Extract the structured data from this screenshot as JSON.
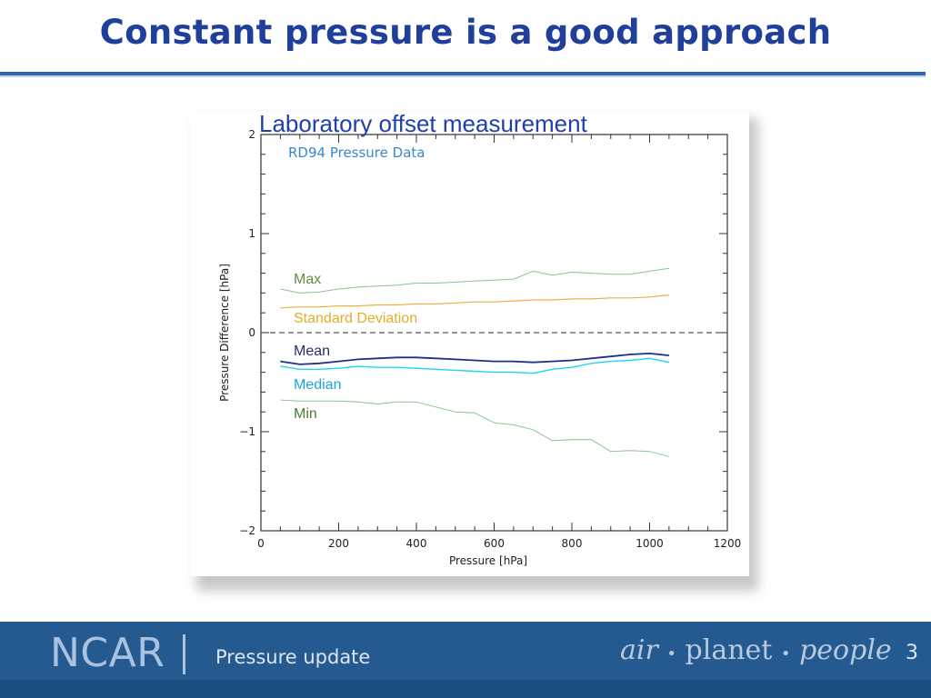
{
  "slide": {
    "title": "Constant pressure is a good approach",
    "footer": {
      "brand": "NCAR",
      "separator": "|",
      "subtitle": "Pressure update",
      "tagline_part1": "air",
      "tagline_dot": "•",
      "tagline_part2": "planet",
      "tagline_part3": "people",
      "page_number": "3"
    }
  },
  "colors": {
    "title": "#1f3f9a",
    "accent_rule": "#2a66b3",
    "footer_bg": "#245a90",
    "chart_title": "#1f3fae",
    "plot_label": "#3a86d0",
    "max": "#7aa76a",
    "min": "#7aa76a",
    "std": "#e0a93a",
    "mean": "#1f2f8a",
    "median": "#1ec8e8",
    "zero_line": "#555555"
  },
  "chart_data": {
    "type": "line",
    "title": "Laboratory offset measurement",
    "inner_label": "RD94 Pressure Data",
    "xlabel": "Pressure [hPa]",
    "ylabel": "Pressure Difference [hPa]",
    "xlim": [
      0,
      1200
    ],
    "ylim": [
      -2,
      2
    ],
    "xticks": [
      0,
      200,
      400,
      600,
      800,
      1000,
      1200
    ],
    "yticks": [
      -2,
      -1,
      0,
      1,
      2
    ],
    "ytick_labels": [
      "−2",
      "−1",
      "0",
      "1",
      "2"
    ],
    "zero_line": "dashed",
    "series": [
      {
        "name": "Max",
        "label_color": "#5f8f3f",
        "x": [
          50,
          100,
          150,
          200,
          250,
          300,
          350,
          400,
          450,
          500,
          550,
          600,
          650,
          700,
          750,
          800,
          850,
          900,
          950,
          1000,
          1050
        ],
        "y": [
          0.44,
          0.4,
          0.41,
          0.44,
          0.46,
          0.47,
          0.48,
          0.5,
          0.5,
          0.51,
          0.52,
          0.53,
          0.54,
          0.62,
          0.58,
          0.61,
          0.6,
          0.59,
          0.59,
          0.62,
          0.65
        ]
      },
      {
        "name": "Standard Deviation",
        "label_color": "#e4ad2a",
        "x": [
          50,
          100,
          150,
          200,
          250,
          300,
          350,
          400,
          450,
          500,
          550,
          600,
          650,
          700,
          750,
          800,
          850,
          900,
          950,
          1000,
          1050
        ],
        "y": [
          0.25,
          0.26,
          0.26,
          0.27,
          0.27,
          0.28,
          0.28,
          0.29,
          0.29,
          0.3,
          0.31,
          0.31,
          0.32,
          0.33,
          0.33,
          0.34,
          0.34,
          0.35,
          0.35,
          0.36,
          0.38
        ]
      },
      {
        "name": "Mean",
        "label_color": "#1f2f6a",
        "x": [
          50,
          100,
          150,
          200,
          250,
          300,
          350,
          400,
          450,
          500,
          550,
          600,
          650,
          700,
          750,
          800,
          850,
          900,
          950,
          1000,
          1050
        ],
        "y": [
          -0.29,
          -0.32,
          -0.31,
          -0.29,
          -0.27,
          -0.26,
          -0.25,
          -0.25,
          -0.26,
          -0.27,
          -0.28,
          -0.29,
          -0.29,
          -0.3,
          -0.29,
          -0.28,
          -0.26,
          -0.24,
          -0.22,
          -0.21,
          -0.23
        ]
      },
      {
        "name": "Median",
        "label_color": "#1aa8dc",
        "x": [
          50,
          100,
          150,
          200,
          250,
          300,
          350,
          400,
          450,
          500,
          550,
          600,
          650,
          700,
          750,
          800,
          850,
          900,
          950,
          1000,
          1050
        ],
        "y": [
          -0.34,
          -0.37,
          -0.37,
          -0.36,
          -0.34,
          -0.35,
          -0.35,
          -0.36,
          -0.37,
          -0.38,
          -0.39,
          -0.4,
          -0.4,
          -0.41,
          -0.37,
          -0.35,
          -0.31,
          -0.29,
          -0.28,
          -0.26,
          -0.3
        ]
      },
      {
        "name": "Min",
        "label_color": "#4f7a2f",
        "x": [
          50,
          100,
          150,
          200,
          250,
          300,
          350,
          400,
          450,
          500,
          550,
          600,
          650,
          700,
          750,
          800,
          850,
          900,
          950,
          1000,
          1050
        ],
        "y": [
          -0.68,
          -0.69,
          -0.69,
          -0.69,
          -0.7,
          -0.72,
          -0.7,
          -0.7,
          -0.75,
          -0.8,
          -0.81,
          -0.91,
          -0.93,
          -0.98,
          -1.09,
          -1.08,
          -1.08,
          -1.2,
          -1.19,
          -1.2,
          -1.25
        ]
      }
    ],
    "series_styles": [
      {
        "color": "#8fc48f",
        "width": 1.0
      },
      {
        "color": "#f0b040",
        "width": 1.2
      },
      {
        "color": "#1f2f8a",
        "width": 1.8
      },
      {
        "color": "#22d4f0",
        "width": 1.4
      },
      {
        "color": "#8fc48f",
        "width": 1.0
      }
    ]
  }
}
